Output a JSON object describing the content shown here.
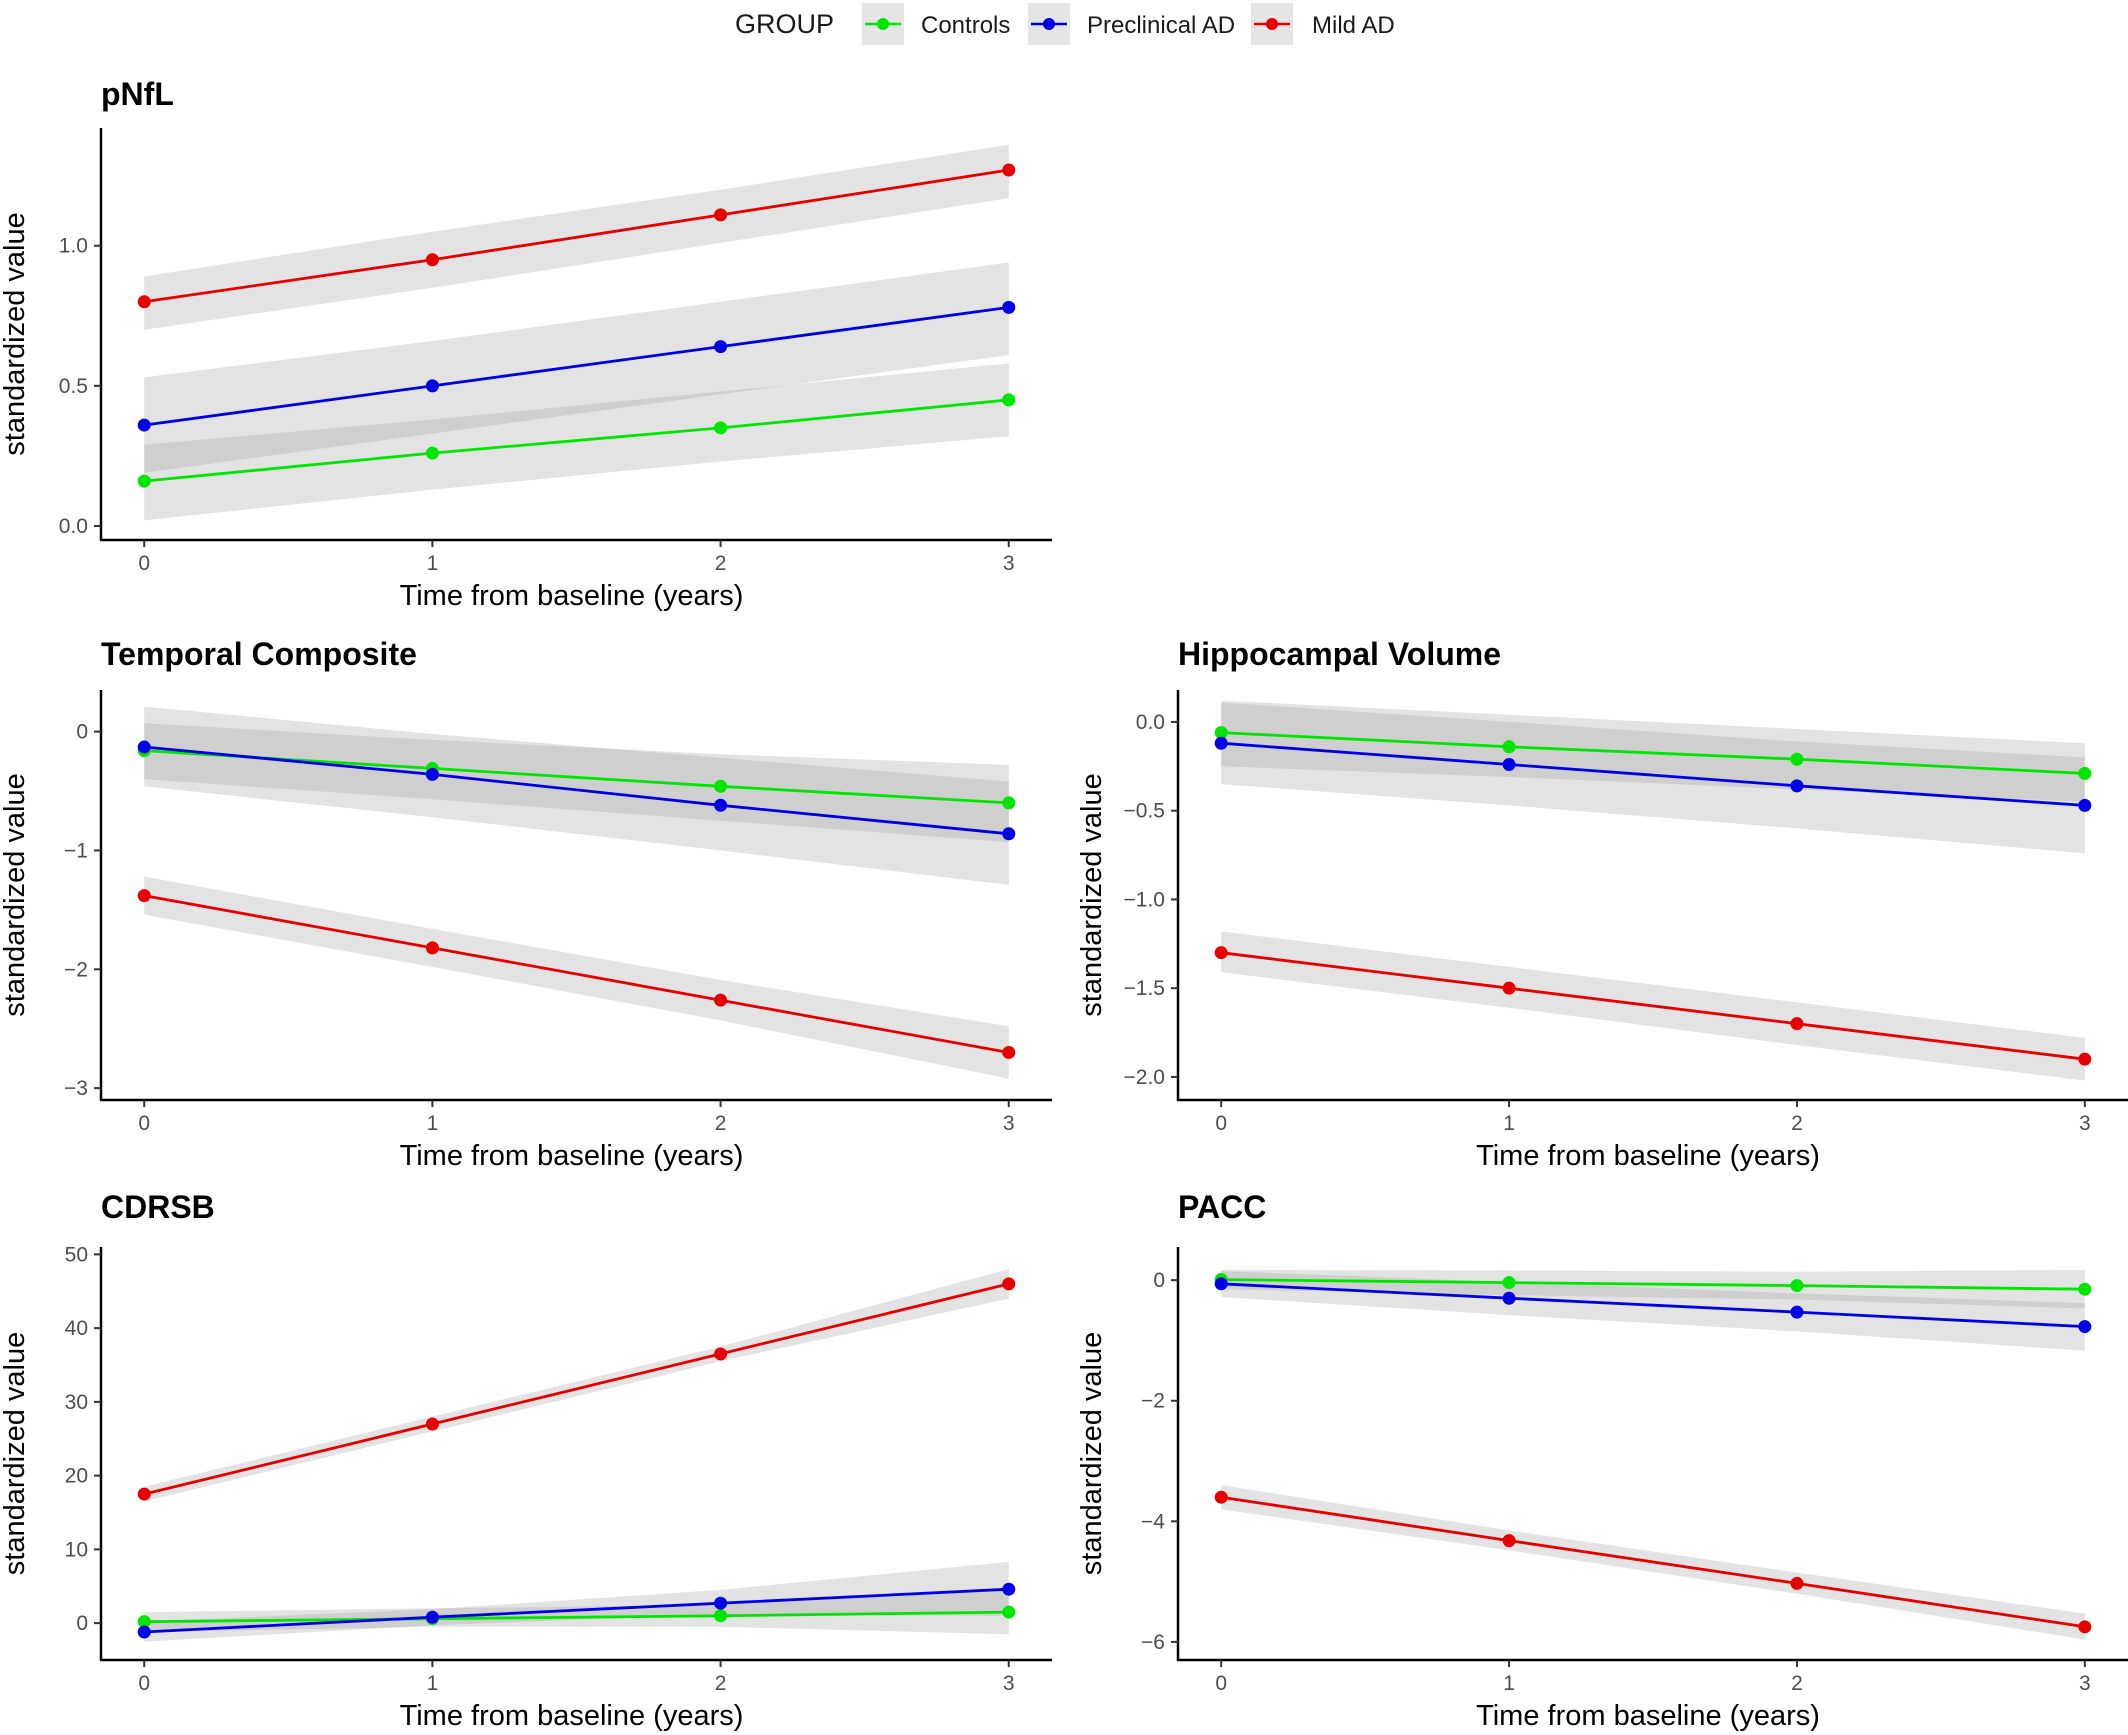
{
  "chart_data": {
    "type": "line",
    "legend": {
      "title": "GROUP",
      "placement": "top-center",
      "entries": [
        {
          "name": "Controls",
          "color": "#00e600"
        },
        {
          "name": "Preclinical AD",
          "color": "#0000e6"
        },
        {
          "name": "Mild AD",
          "color": "#e60000"
        }
      ]
    },
    "grid": false,
    "panels": [
      {
        "title": "pNfL",
        "xlabel": "Time from baseline (years)",
        "ylabel": "standardized value",
        "x": [
          0,
          1,
          2,
          3
        ],
        "xticks": [
          "0",
          "1",
          "2",
          "3"
        ],
        "xlim": [
          -0.15,
          3.15
        ],
        "yticks": [
          0,
          0.5,
          1.0
        ],
        "ytick_labels": [
          "0.0",
          "0.5",
          "1.0"
        ],
        "ylim": [
          -0.05,
          1.42
        ],
        "series": [
          {
            "name": "Controls",
            "values": [
              0.16,
              0.26,
              0.35,
              0.45
            ],
            "lower": [
              0.02,
              0.13,
              0.23,
              0.32
            ],
            "upper": [
              0.29,
              0.38,
              0.48,
              0.58
            ]
          },
          {
            "name": "Preclinical AD",
            "values": [
              0.36,
              0.5,
              0.64,
              0.78
            ],
            "lower": [
              0.19,
              0.33,
              0.47,
              0.61
            ],
            "upper": [
              0.53,
              0.66,
              0.8,
              0.94
            ]
          },
          {
            "name": "Mild AD",
            "values": [
              0.8,
              0.95,
              1.11,
              1.27
            ],
            "lower": [
              0.7,
              0.85,
              1.01,
              1.17
            ],
            "upper": [
              0.89,
              1.05,
              1.2,
              1.36
            ]
          }
        ]
      },
      {
        "title": "Temporal Composite",
        "xlabel": "Time from baseline (years)",
        "ylabel": "standardized value",
        "x": [
          0,
          1,
          2,
          3
        ],
        "xticks": [
          "0",
          "1",
          "2",
          "3"
        ],
        "xlim": [
          -0.15,
          3.15
        ],
        "yticks": [
          -3,
          -2,
          -1,
          0
        ],
        "ytick_labels": [
          "−3",
          "−2",
          "−1",
          "0"
        ],
        "ylim": [
          -3.1,
          0.35
        ],
        "series": [
          {
            "name": "Controls",
            "values": [
              -0.16,
              -0.31,
              -0.46,
              -0.6
            ],
            "lower": [
              -0.4,
              -0.57,
              -0.75,
              -0.93
            ],
            "upper": [
              0.07,
              -0.07,
              -0.19,
              -0.28
            ]
          },
          {
            "name": "Preclinical AD",
            "values": [
              -0.13,
              -0.36,
              -0.62,
              -0.86
            ],
            "lower": [
              -0.46,
              -0.72,
              -1.0,
              -1.29
            ],
            "upper": [
              0.21,
              -0.02,
              -0.22,
              -0.42
            ]
          },
          {
            "name": "Mild AD",
            "values": [
              -1.38,
              -1.82,
              -2.26,
              -2.7
            ],
            "lower": [
              -1.54,
              -1.98,
              -2.43,
              -2.92
            ],
            "upper": [
              -1.22,
              -1.66,
              -2.09,
              -2.48
            ]
          }
        ]
      },
      {
        "title": "Hippocampal Volume",
        "xlabel": "Time from baseline (years)",
        "ylabel": "standardized value",
        "x": [
          0,
          1,
          2,
          3
        ],
        "xticks": [
          "0",
          "1",
          "2",
          "3"
        ],
        "xlim": [
          -0.15,
          3.15
        ],
        "yticks": [
          -2.0,
          -1.5,
          -1.0,
          -0.5,
          0.0
        ],
        "ytick_labels": [
          "−2.0",
          "−1.5",
          "−1.0",
          "−0.5",
          "0.0"
        ],
        "ylim": [
          -2.13,
          0.18
        ],
        "series": [
          {
            "name": "Controls",
            "values": [
              -0.06,
              -0.14,
              -0.21,
              -0.29
            ],
            "lower": [
              -0.25,
              -0.31,
              -0.38,
              -0.45
            ],
            "upper": [
              0.12,
              0.04,
              -0.04,
              -0.12
            ]
          },
          {
            "name": "Preclinical AD",
            "values": [
              -0.12,
              -0.24,
              -0.36,
              -0.47
            ],
            "lower": [
              -0.35,
              -0.47,
              -0.6,
              -0.74
            ],
            "upper": [
              0.11,
              0.0,
              -0.11,
              -0.2
            ]
          },
          {
            "name": "Mild AD",
            "values": [
              -1.3,
              -1.5,
              -1.7,
              -1.9
            ],
            "lower": [
              -1.41,
              -1.61,
              -1.82,
              -2.02
            ],
            "upper": [
              -1.18,
              -1.38,
              -1.58,
              -1.78
            ]
          }
        ]
      },
      {
        "title": "CDRSB",
        "xlabel": "Time from baseline (years)",
        "ylabel": "standardized value",
        "x": [
          0,
          1,
          2,
          3
        ],
        "xticks": [
          "0",
          "1",
          "2",
          "3"
        ],
        "xlim": [
          -0.15,
          3.15
        ],
        "yticks": [
          0,
          10,
          20,
          30,
          40,
          50
        ],
        "ytick_labels": [
          "0",
          "10",
          "20",
          "30",
          "40",
          "50"
        ],
        "ylim": [
          -5,
          51
        ],
        "series": [
          {
            "name": "Controls",
            "values": [
              0.2,
              0.6,
              1.0,
              1.5
            ],
            "lower": [
              -1.2,
              -0.5,
              -0.5,
              -1.5
            ],
            "upper": [
              1.5,
              2.0,
              2.5,
              4.5
            ]
          },
          {
            "name": "Preclinical AD",
            "values": [
              -1.2,
              0.8,
              2.7,
              4.6
            ],
            "lower": [
              -2.5,
              -0.3,
              1.2,
              1.0
            ],
            "upper": [
              0.2,
              1.9,
              4.5,
              8.3
            ]
          },
          {
            "name": "Mild AD",
            "values": [
              17.5,
              27.0,
              36.5,
              46.0
            ],
            "lower": [
              16.5,
              26.0,
              35.5,
              44.0
            ],
            "upper": [
              18.5,
              28.0,
              37.5,
              48.0
            ]
          }
        ]
      },
      {
        "title": "PACC",
        "xlabel": "Time from baseline (years)",
        "ylabel": "standardized value",
        "x": [
          0,
          1,
          2,
          3
        ],
        "xticks": [
          "0",
          "1",
          "2",
          "3"
        ],
        "xlim": [
          -0.15,
          3.15
        ],
        "yticks": [
          -6,
          -4,
          -2,
          0
        ],
        "ytick_labels": [
          "−6",
          "−4",
          "−2",
          "0"
        ],
        "ylim": [
          -6.3,
          0.55
        ],
        "series": [
          {
            "name": "Controls",
            "values": [
              0.01,
              -0.04,
              -0.09,
              -0.15
            ],
            "lower": [
              -0.15,
              -0.25,
              -0.32,
              -0.47
            ],
            "upper": [
              0.17,
              0.16,
              0.14,
              0.17
            ]
          },
          {
            "name": "Preclinical AD",
            "values": [
              -0.06,
              -0.3,
              -0.53,
              -0.77
            ],
            "lower": [
              -0.28,
              -0.58,
              -0.85,
              -1.17
            ],
            "upper": [
              0.15,
              -0.03,
              -0.22,
              -0.38
            ]
          },
          {
            "name": "Mild AD",
            "values": [
              -3.6,
              -4.32,
              -5.03,
              -5.75
            ],
            "lower": [
              -3.8,
              -4.48,
              -5.2,
              -5.96
            ],
            "upper": [
              -3.4,
              -4.15,
              -4.85,
              -5.53
            ]
          }
        ]
      }
    ]
  }
}
